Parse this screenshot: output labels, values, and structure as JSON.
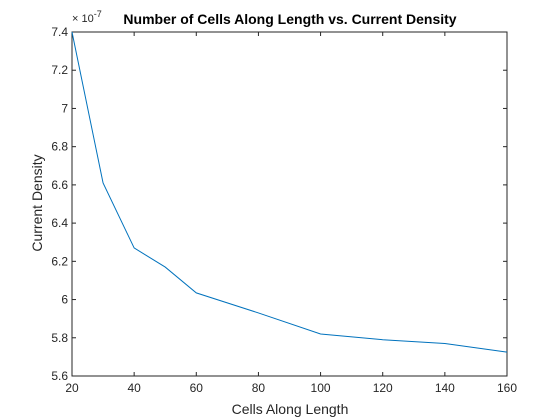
{
  "chart_data": {
    "type": "line",
    "title": "Number of Cells Along Length vs. Current Density",
    "xlabel": "Cells Along Length",
    "ylabel": "Current Density",
    "y_exponent_base": "× 10",
    "y_exponent_power": "-7",
    "xlim": [
      20,
      160
    ],
    "ylim": [
      5.6,
      7.4
    ],
    "xticks": [
      "20",
      "40",
      "60",
      "80",
      "100",
      "120",
      "140",
      "160"
    ],
    "yticks": [
      "5.6",
      "5.8",
      "6",
      "6.2",
      "6.4",
      "6.6",
      "6.8",
      "7",
      "7.2",
      "7.4"
    ],
    "grid": false,
    "series": [
      {
        "color": "#0072BD",
        "x": [
          20,
          30,
          40,
          50,
          60,
          80,
          100,
          120,
          140,
          160
        ],
        "y": [
          7.4,
          6.61,
          6.27,
          6.17,
          6.035,
          5.93,
          5.82,
          5.79,
          5.77,
          5.725
        ]
      }
    ]
  }
}
